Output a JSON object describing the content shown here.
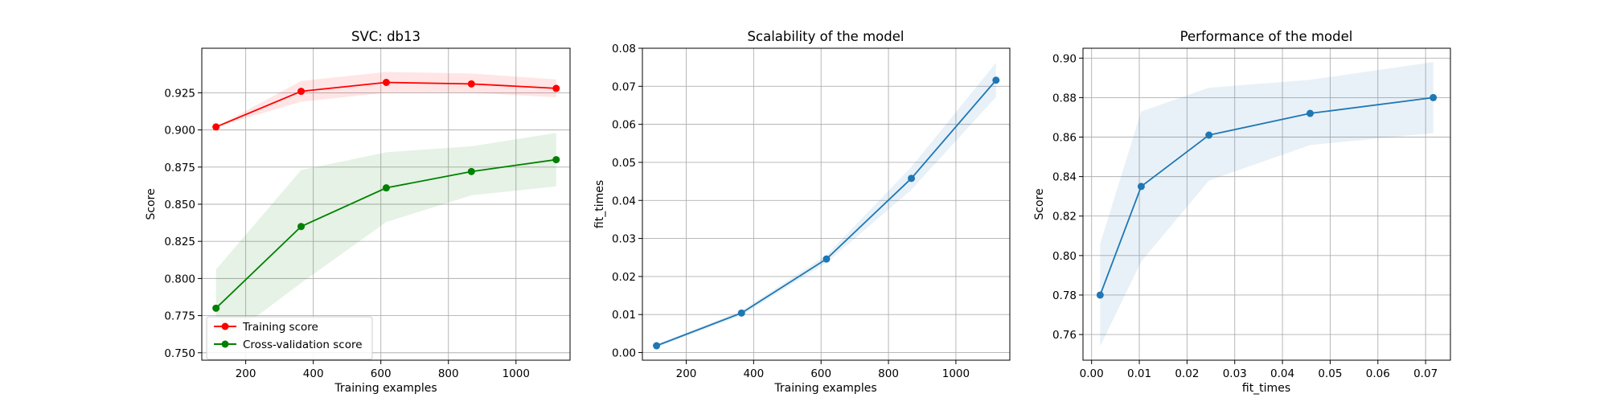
{
  "chart_data": [
    {
      "type": "line",
      "title": "SVC: db13",
      "xlabel": "Training examples",
      "ylabel": "Score",
      "xlim": [
        70,
        1160
      ],
      "ylim": [
        0.745,
        0.955
      ],
      "xticks": [
        200,
        400,
        600,
        800,
        1000
      ],
      "yticks": [
        0.75,
        0.775,
        0.8,
        0.825,
        0.85,
        0.875,
        0.9,
        0.925
      ],
      "ytick_labels": [
        "0.750",
        "0.775",
        "0.800",
        "0.825",
        "0.850",
        "0.875",
        "0.900",
        "0.925"
      ],
      "grid": true,
      "legend": "lower-left",
      "series": [
        {
          "name": "Training score",
          "color": "#ff0000",
          "x": [
            112,
            364,
            616,
            868,
            1119
          ],
          "y": [
            0.902,
            0.926,
            0.932,
            0.931,
            0.928
          ],
          "band_lower": [
            0.902,
            0.919,
            0.925,
            0.925,
            0.922
          ],
          "band_upper": [
            0.902,
            0.933,
            0.939,
            0.938,
            0.934
          ]
        },
        {
          "name": "Cross-validation score",
          "color": "#008000",
          "x": [
            112,
            364,
            616,
            868,
            1119
          ],
          "y": [
            0.78,
            0.835,
            0.861,
            0.872,
            0.88
          ],
          "band_lower": [
            0.754,
            0.797,
            0.838,
            0.856,
            0.862
          ],
          "band_upper": [
            0.806,
            0.873,
            0.885,
            0.889,
            0.898
          ]
        }
      ]
    },
    {
      "type": "line",
      "title": "Scalability of the model",
      "xlabel": "Training examples",
      "ylabel": "fit_times",
      "xlim": [
        70,
        1160
      ],
      "ylim": [
        -0.002,
        0.08
      ],
      "xticks": [
        200,
        400,
        600,
        800,
        1000
      ],
      "yticks": [
        0,
        0.01,
        0.02,
        0.03,
        0.04,
        0.05,
        0.06,
        0.07,
        0.08
      ],
      "ytick_labels": [
        "0.00",
        "0.01",
        "0.02",
        "0.03",
        "0.04",
        "0.05",
        "0.06",
        "0.07",
        "0.08"
      ],
      "grid": true,
      "series": [
        {
          "color": "#1f77b4",
          "x": [
            112,
            364,
            616,
            868,
            1119
          ],
          "y": [
            0.0018,
            0.0104,
            0.0246,
            0.0458,
            0.0716
          ],
          "band_lower": [
            0.0014,
            0.0098,
            0.0236,
            0.0428,
            0.0672
          ],
          "band_upper": [
            0.0022,
            0.011,
            0.0256,
            0.0488,
            0.0762
          ]
        }
      ]
    },
    {
      "type": "line",
      "title": "Performance of the model",
      "xlabel": "fit_times",
      "ylabel": "Score",
      "xlim": [
        -0.0018,
        0.0752
      ],
      "ylim": [
        0.747,
        0.905
      ],
      "xticks": [
        0,
        0.01,
        0.02,
        0.03,
        0.04,
        0.05,
        0.06,
        0.07
      ],
      "xtick_labels": [
        "0.00",
        "0.01",
        "0.02",
        "0.03",
        "0.04",
        "0.05",
        "0.06",
        "0.07"
      ],
      "yticks": [
        0.76,
        0.78,
        0.8,
        0.82,
        0.84,
        0.86,
        0.88,
        0.9
      ],
      "ytick_labels": [
        "0.76",
        "0.78",
        "0.80",
        "0.82",
        "0.84",
        "0.86",
        "0.88",
        "0.90"
      ],
      "grid": true,
      "series": [
        {
          "color": "#1f77b4",
          "x": [
            0.0018,
            0.0104,
            0.0246,
            0.0458,
            0.0716
          ],
          "y": [
            0.78,
            0.835,
            0.861,
            0.872,
            0.88
          ],
          "band_lower": [
            0.754,
            0.797,
            0.838,
            0.856,
            0.862
          ],
          "band_upper": [
            0.806,
            0.873,
            0.885,
            0.889,
            0.898
          ]
        }
      ]
    }
  ]
}
